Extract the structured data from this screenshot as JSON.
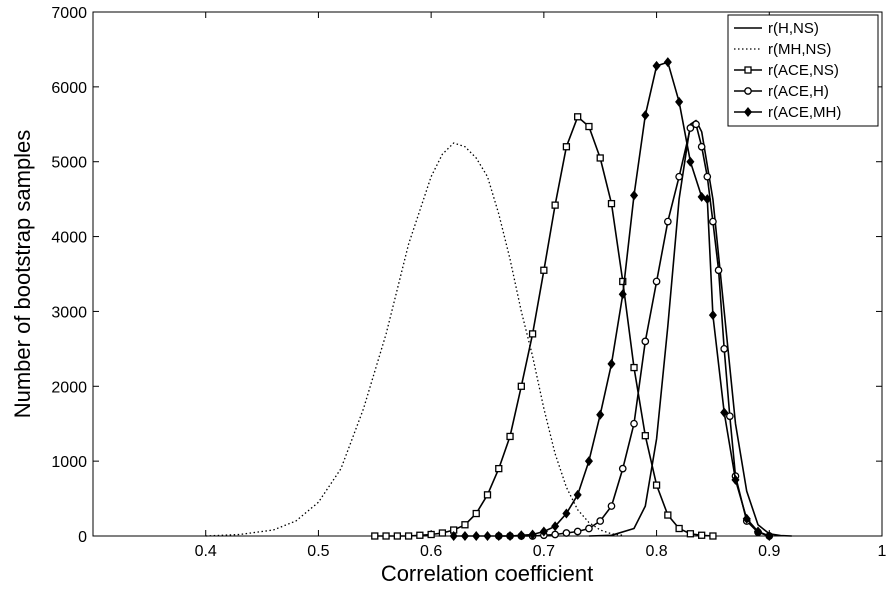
{
  "chart_data": {
    "type": "line",
    "title": "",
    "xlabel": "Correlation coefficient",
    "ylabel": "Number of bootstrap samples",
    "xlim": [
      0.3,
      1.0
    ],
    "ylim": [
      0,
      7000
    ],
    "x_ticks": [
      0.4,
      0.5,
      0.6,
      0.7,
      0.8,
      0.9,
      1.0
    ],
    "x_tick_labels": [
      "0.4",
      "0.5",
      "0.6",
      "0.7",
      "0.8",
      "0.9",
      "1"
    ],
    "y_ticks": [
      0,
      1000,
      2000,
      3000,
      4000,
      5000,
      6000,
      7000
    ],
    "y_tick_labels": [
      "0",
      "1000",
      "2000",
      "3000",
      "4000",
      "5000",
      "6000",
      "7000"
    ],
    "grid": false,
    "legend_position": "top-right",
    "series": [
      {
        "name": "r(H,NS)",
        "line": "solid",
        "marker": "none",
        "x": [
          0.74,
          0.76,
          0.78,
          0.79,
          0.8,
          0.81,
          0.82,
          0.83,
          0.835,
          0.84,
          0.85,
          0.86,
          0.87,
          0.88,
          0.89,
          0.9,
          0.91,
          0.92
        ],
        "y": [
          0,
          10,
          100,
          400,
          1300,
          2800,
          4500,
          5500,
          5550,
          5400,
          4500,
          3000,
          1500,
          600,
          150,
          30,
          5,
          0
        ]
      },
      {
        "name": "r(MH,NS)",
        "line": "dotted",
        "marker": "none",
        "x": [
          0.4,
          0.43,
          0.46,
          0.48,
          0.5,
          0.52,
          0.54,
          0.56,
          0.58,
          0.6,
          0.61,
          0.62,
          0.63,
          0.64,
          0.65,
          0.66,
          0.67,
          0.68,
          0.69,
          0.7,
          0.71,
          0.72,
          0.73,
          0.74,
          0.75,
          0.76,
          0.77
        ],
        "y": [
          0,
          20,
          80,
          200,
          450,
          900,
          1700,
          2700,
          3900,
          4800,
          5100,
          5250,
          5200,
          5050,
          4800,
          4300,
          3700,
          3000,
          2400,
          1700,
          1100,
          650,
          350,
          180,
          80,
          30,
          10
        ]
      },
      {
        "name": "r(ACE,NS)",
        "line": "solid",
        "marker": "square",
        "x": [
          0.55,
          0.56,
          0.57,
          0.58,
          0.59,
          0.6,
          0.61,
          0.62,
          0.63,
          0.64,
          0.65,
          0.66,
          0.67,
          0.68,
          0.69,
          0.7,
          0.71,
          0.72,
          0.73,
          0.74,
          0.75,
          0.76,
          0.77,
          0.78,
          0.79,
          0.8,
          0.81,
          0.82,
          0.83,
          0.84,
          0.85
        ],
        "y": [
          0,
          0,
          0,
          0,
          10,
          20,
          40,
          80,
          150,
          300,
          550,
          900,
          1330,
          2000,
          2700,
          3550,
          4420,
          5200,
          5600,
          5470,
          5050,
          4440,
          3400,
          2250,
          1340,
          680,
          280,
          100,
          30,
          10,
          0
        ]
      },
      {
        "name": "r(ACE,H)",
        "line": "solid",
        "marker": "circle",
        "x": [
          0.66,
          0.67,
          0.68,
          0.69,
          0.7,
          0.71,
          0.72,
          0.73,
          0.74,
          0.75,
          0.76,
          0.77,
          0.78,
          0.79,
          0.8,
          0.81,
          0.82,
          0.83,
          0.835,
          0.84,
          0.845,
          0.85,
          0.855,
          0.86,
          0.865,
          0.87,
          0.88,
          0.89,
          0.9
        ],
        "y": [
          0,
          0,
          0,
          0,
          10,
          20,
          40,
          60,
          100,
          200,
          400,
          900,
          1500,
          2600,
          3400,
          4200,
          4800,
          5450,
          5500,
          5200,
          4800,
          4200,
          3550,
          2500,
          1600,
          800,
          200,
          50,
          0
        ]
      },
      {
        "name": "r(ACE,MH)",
        "line": "solid",
        "marker": "diamond",
        "x": [
          0.62,
          0.63,
          0.64,
          0.65,
          0.66,
          0.67,
          0.68,
          0.69,
          0.7,
          0.71,
          0.72,
          0.73,
          0.74,
          0.75,
          0.76,
          0.77,
          0.78,
          0.79,
          0.8,
          0.81,
          0.82,
          0.83,
          0.84,
          0.845,
          0.85,
          0.86,
          0.87,
          0.88,
          0.89,
          0.9
        ],
        "y": [
          0,
          0,
          0,
          0,
          0,
          0,
          10,
          20,
          60,
          130,
          300,
          550,
          1000,
          1620,
          2300,
          3230,
          4550,
          5620,
          6280,
          6330,
          5800,
          5000,
          4530,
          4500,
          2950,
          1650,
          750,
          230,
          60,
          0
        ]
      }
    ]
  }
}
